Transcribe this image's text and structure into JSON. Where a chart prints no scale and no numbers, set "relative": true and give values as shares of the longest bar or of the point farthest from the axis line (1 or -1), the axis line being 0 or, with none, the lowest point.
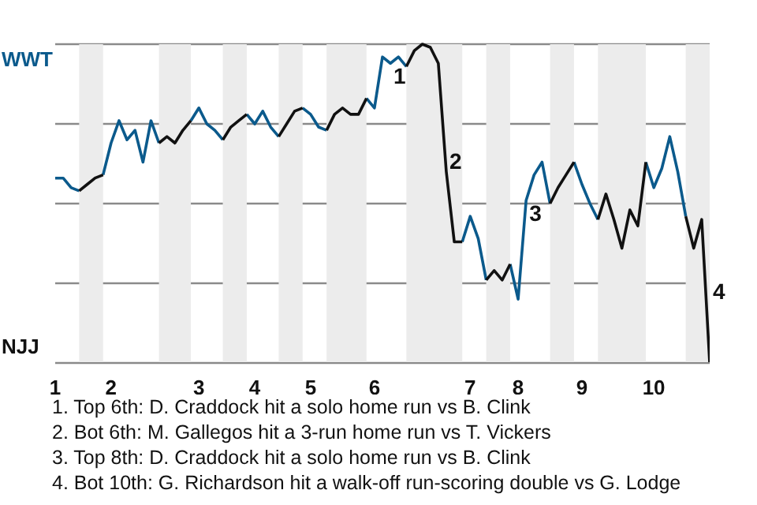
{
  "chart_data": {
    "type": "line",
    "relative": true,
    "categories": [
      "1",
      null,
      null,
      null,
      null,
      null,
      null,
      "2",
      null,
      null,
      null,
      null,
      null,
      null,
      null,
      null,
      null,
      null,
      "3",
      null,
      null,
      null,
      null,
      null,
      null,
      "4",
      null,
      null,
      null,
      null,
      null,
      null,
      "5",
      null,
      null,
      null,
      null,
      null,
      null,
      null,
      "6",
      null,
      null,
      null,
      null,
      null,
      null,
      null,
      null,
      null,
      null,
      null,
      "7",
      null,
      null,
      null,
      null,
      null,
      "8",
      null,
      null,
      null,
      null,
      null,
      null,
      null,
      "9",
      null,
      null,
      null,
      null,
      null,
      null,
      null,
      null,
      "10",
      null,
      null,
      null,
      null,
      null,
      null,
      null
    ],
    "series": [
      {
        "color": "#0b5a8c",
        "values": [
          0.58,
          0.58,
          0.55,
          0.54,
          null,
          null,
          0.59,
          0.69,
          0.76,
          0.7,
          0.73,
          0.63,
          0.76,
          0.69,
          null,
          null,
          null,
          0.76,
          0.8,
          0.75,
          0.73,
          0.7,
          null,
          null,
          0.78,
          0.75,
          0.79,
          0.74,
          0.71,
          null,
          null,
          0.8,
          0.78,
          0.74,
          0.73,
          null,
          null,
          null,
          null,
          0.83,
          0.8,
          0.96,
          0.94,
          0.96,
          0.93,
          null,
          null,
          null,
          null,
          null,
          null,
          0.38,
          0.46,
          0.39,
          0.26,
          null,
          null,
          0.31,
          0.2,
          0.51,
          0.59,
          0.63,
          0.5,
          null,
          null,
          0.63,
          0.56,
          0.5,
          0.45,
          null,
          null,
          null,
          null,
          null,
          0.63,
          0.55,
          0.61,
          0.71,
          0.6,
          0.46,
          null,
          null,
          null
        ]
      },
      {
        "color": "#111111",
        "values": [
          null,
          null,
          null,
          0.54,
          0.56,
          0.58,
          0.59,
          null,
          null,
          null,
          null,
          null,
          null,
          0.69,
          0.71,
          0.69,
          0.73,
          0.76,
          null,
          null,
          null,
          0.7,
          0.74,
          0.76,
          0.78,
          null,
          null,
          null,
          0.71,
          0.75,
          0.79,
          0.8,
          null,
          null,
          0.73,
          0.78,
          0.8,
          0.78,
          0.78,
          0.83,
          null,
          null,
          null,
          null,
          0.93,
          0.98,
          1,
          0.99,
          0.94,
          0.6,
          0.38,
          0.38,
          null,
          null,
          0.26,
          0.29,
          0.26,
          0.31,
          null,
          null,
          null,
          null,
          0.5,
          0.55,
          0.59,
          0.63,
          null,
          null,
          0.45,
          0.53,
          0.45,
          0.36,
          0.48,
          0.43,
          0.63,
          null,
          null,
          null,
          null,
          0.46,
          0.36,
          0.45,
          0
        ]
      }
    ],
    "grid": "y",
    "annotations": [
      "WWT",
      "NJJ",
      "4",
      {
        "text": "1",
        "y": 0.94
      },
      {
        "text": "2",
        "y": 0.6
      },
      {
        "text": "3",
        "y": 0.51
      },
      "1. Top 6th: D. Craddock hit a solo home run vs B. Clink",
      "2. Bot 6th: M. Gallegos hit a 3-run home run vs T. Vickers",
      "3. Top 8th: D. Craddock hit a solo home run vs B. Clink",
      "4. Bot 10th: G. Richardson hit a walk-off run-scoring double vs G. Lodge"
    ]
  }
}
